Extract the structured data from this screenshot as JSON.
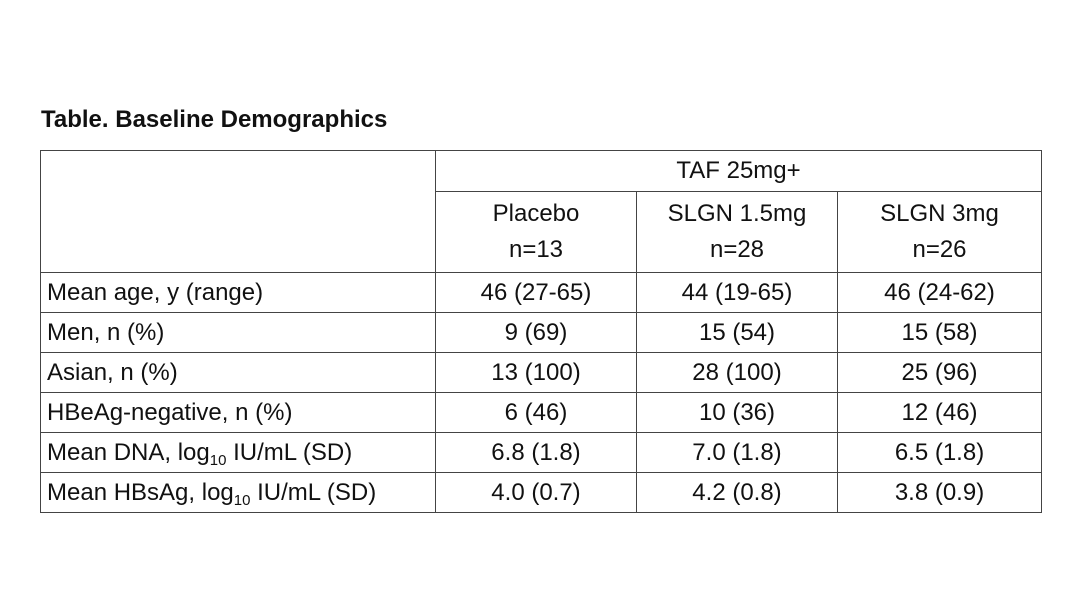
{
  "title": "Table. Baseline Demographics",
  "table": {
    "group_header": "TAF 25mg+",
    "arms": [
      {
        "name": "Placebo",
        "n": "n=13"
      },
      {
        "name": "SLGN 1.5mg",
        "n": "n=28"
      },
      {
        "name": "SLGN 3mg",
        "n": "n=26"
      }
    ],
    "rows": [
      {
        "label": "Mean age, y (range)",
        "values": [
          "46 (27-65)",
          "44 (19-65)",
          "46 (24-62)"
        ]
      },
      {
        "label": "Men, n (%)",
        "values": [
          "9 (69)",
          "15 (54)",
          "15 (58)"
        ]
      },
      {
        "label": "Asian, n (%)",
        "values": [
          "13 (100)",
          "28 (100)",
          "25 (96)"
        ]
      },
      {
        "label": "HBeAg-negative, n (%)",
        "values": [
          "6 (46)",
          "10 (36)",
          "12 (46)"
        ]
      },
      {
        "label_pre": "Mean DNA, log",
        "label_sub": "10",
        "label_post": " IU/mL (SD)",
        "values": [
          "6.8 (1.8)",
          "7.0 (1.8)",
          "6.5 (1.8)"
        ]
      },
      {
        "label_pre": "Mean HBsAg, log",
        "label_sub": "10",
        "label_post": " IU/mL (SD)",
        "values": [
          "4.0 (0.7)",
          "4.2 (0.8)",
          "3.8 (0.9)"
        ]
      }
    ]
  }
}
